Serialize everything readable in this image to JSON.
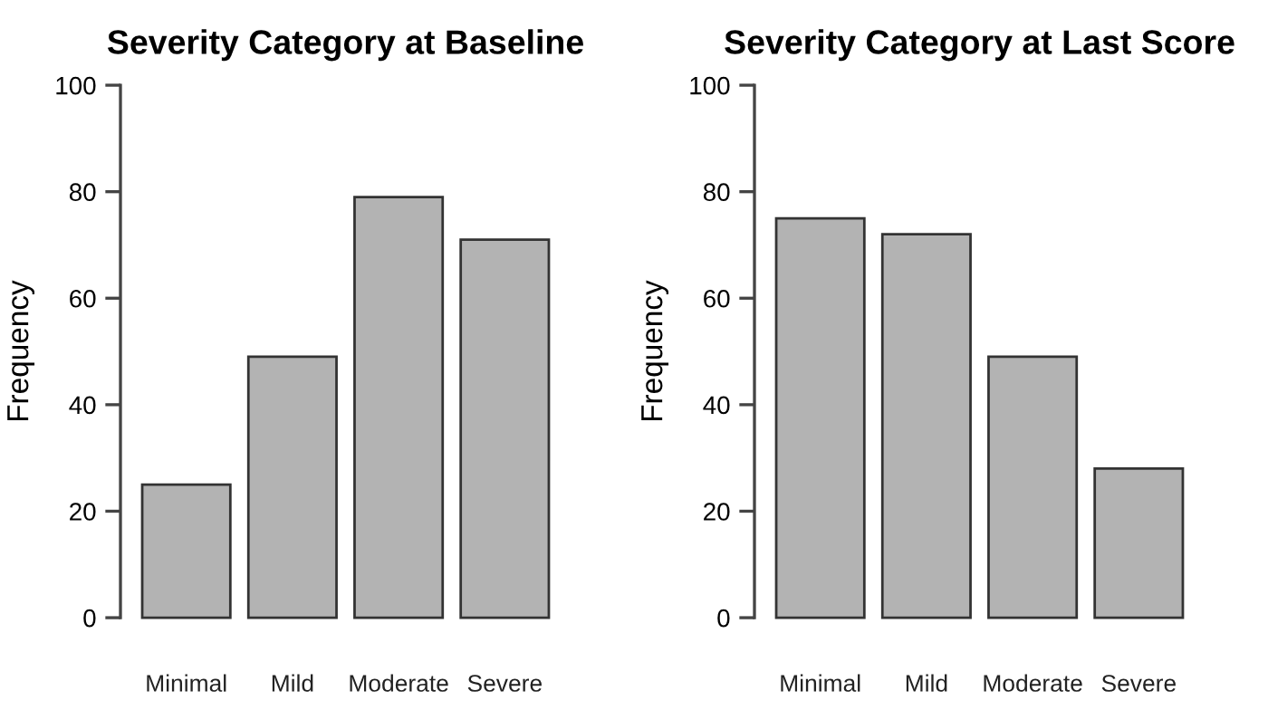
{
  "chart_data": [
    {
      "type": "bar",
      "title": "Severity Category at Baseline",
      "ylabel": "Frequency",
      "categories": [
        "Minimal",
        "Mild",
        "Moderate",
        "Severe"
      ],
      "values": [
        25,
        49,
        79,
        71
      ],
      "color": "#b3b3b3",
      "ylim": [
        0,
        100
      ],
      "yticks": [
        0,
        20,
        40,
        60,
        80,
        100
      ],
      "grid": false,
      "legend": false
    },
    {
      "type": "bar",
      "title": "Severity Category at Last Score",
      "ylabel": "Frequency",
      "categories": [
        "Minimal",
        "Mild",
        "Moderate",
        "Severe"
      ],
      "values": [
        75,
        72,
        49,
        28
      ],
      "color": "#b3b3b3",
      "ylim": [
        0,
        100
      ],
      "yticks": [
        0,
        20,
        40,
        60,
        80,
        100
      ],
      "grid": false,
      "legend": false
    }
  ]
}
